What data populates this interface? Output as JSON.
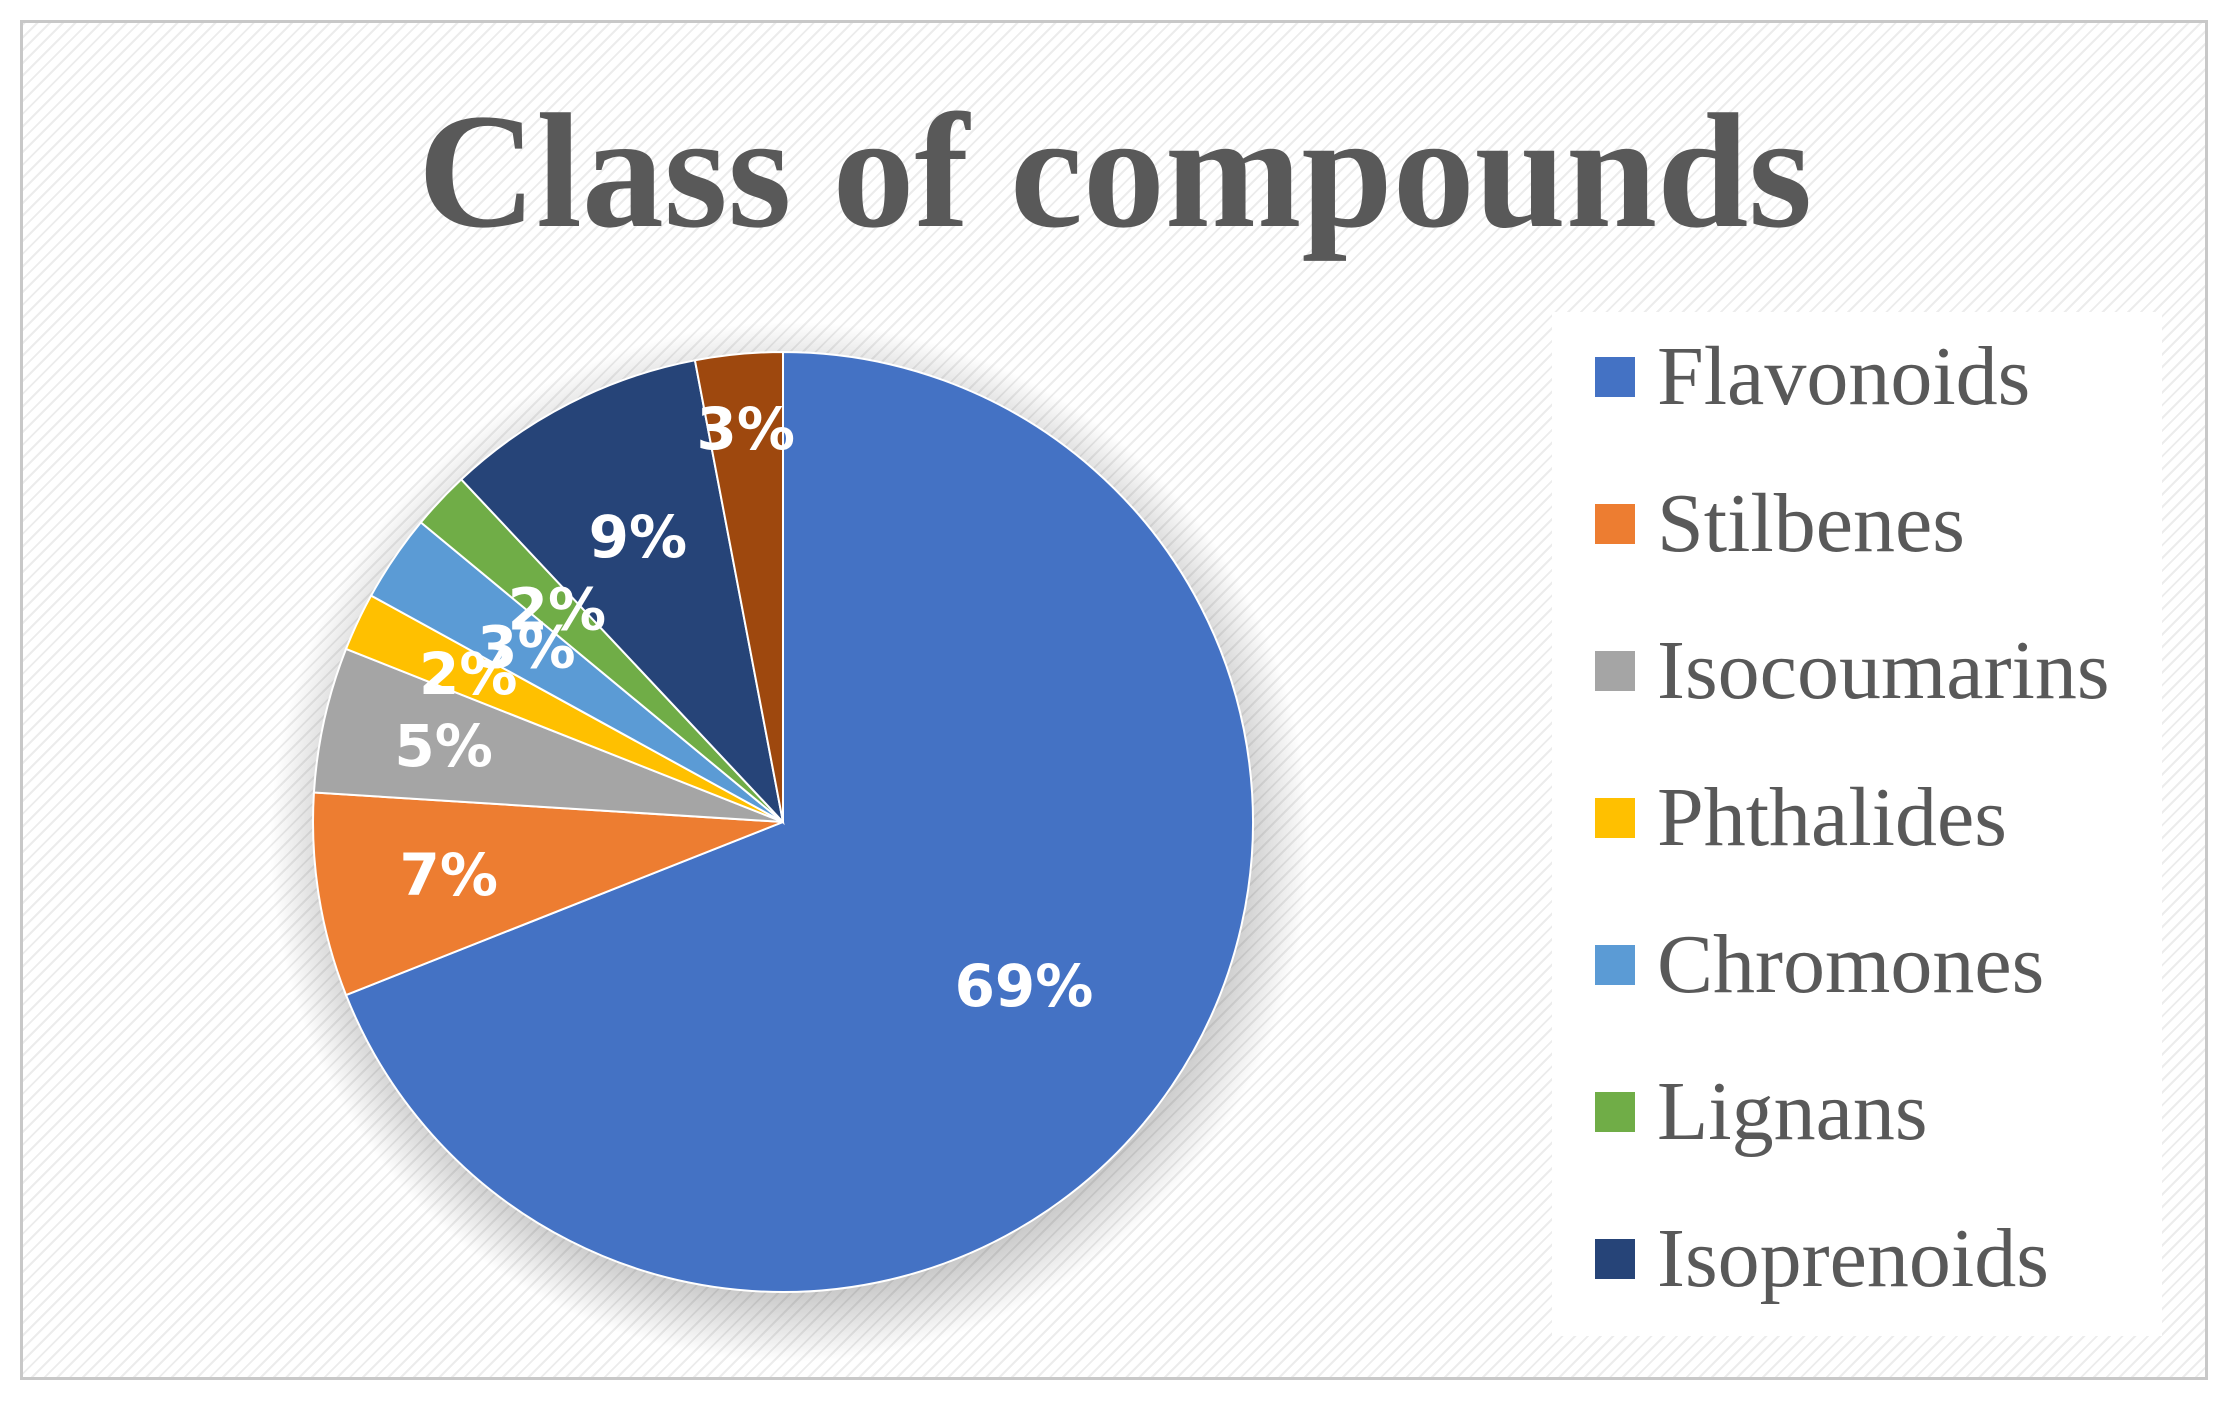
{
  "chart_data": {
    "type": "pie",
    "title": "Class of compounds",
    "legend_position": "right",
    "slices": [
      {
        "name": "Flavonoids",
        "value": 69,
        "label": "69%",
        "color": "#4472C4",
        "label_color": "#FFFFFF"
      },
      {
        "name": "Stilbenes",
        "value": 7,
        "label": "7%",
        "color": "#ED7D31",
        "label_color": "#FFFFFF"
      },
      {
        "name": "Isocoumarins",
        "value": 5,
        "label": "5%",
        "color": "#A5A5A5",
        "label_color": "#FFFFFF"
      },
      {
        "name": "Phthalides",
        "value": 2,
        "label": "2%",
        "color": "#FFC000",
        "label_color": "#FFFFFF"
      },
      {
        "name": "Chromones",
        "value": 3,
        "label": "3%",
        "color": "#5B9BD5",
        "label_color": "#FFFFFF"
      },
      {
        "name": "Lignans",
        "value": 2,
        "label": "2%",
        "color": "#70AD47",
        "label_color": "#FFFFFF"
      },
      {
        "name": "Isoprenoids",
        "value": 9,
        "label": "9%",
        "color": "#264478",
        "label_color": "#FFFFFF"
      },
      {
        "name": "",
        "value": 3,
        "label": "3%",
        "color": "#9E480E",
        "label_color": "#FFFFFF"
      }
    ]
  }
}
